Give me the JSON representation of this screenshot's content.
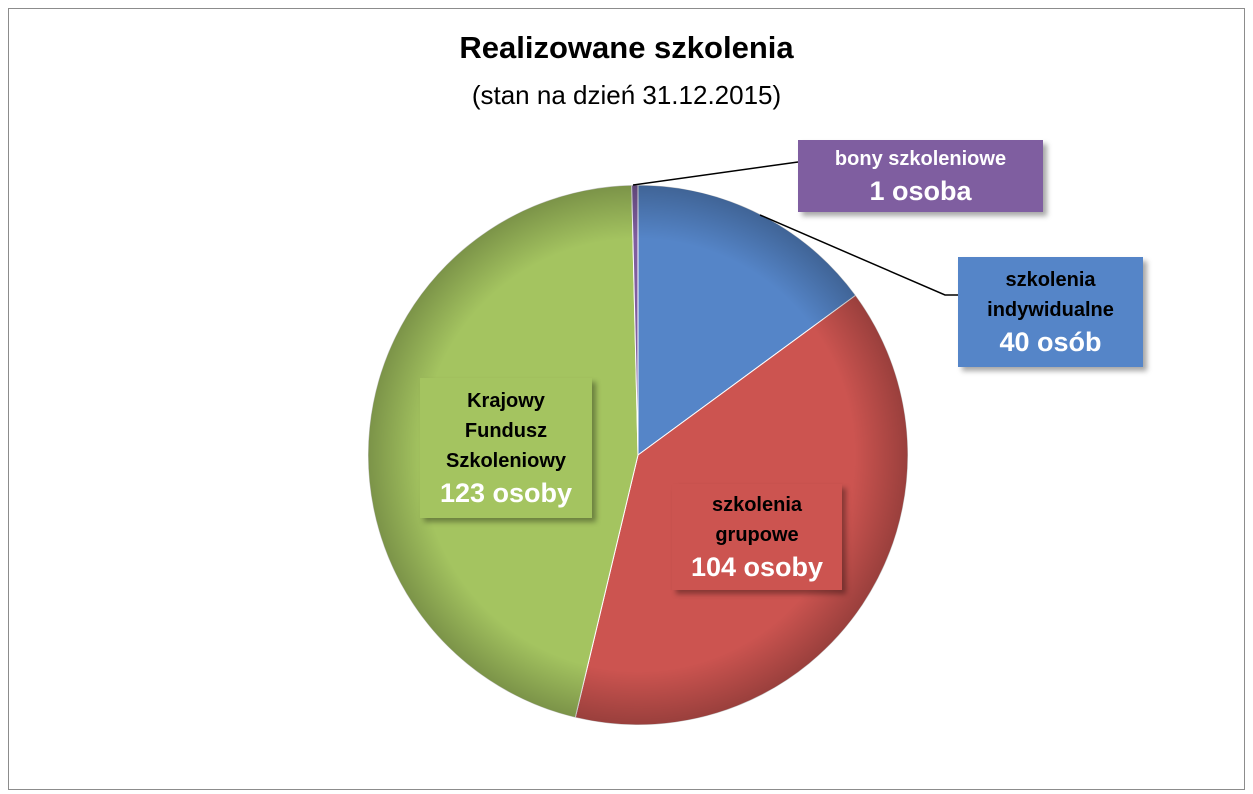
{
  "chart_data": {
    "type": "pie",
    "title": "Realizowane szkolenia",
    "subtitle": "(stan na dzień 31.12.2015)",
    "categories": [
      "szkolenia indywidualne",
      "szkolenia grupowe",
      "Krajowy Fundusz Szkoleniowy",
      "bony szkoleniowe"
    ],
    "values": [
      40,
      104,
      123,
      1
    ],
    "value_labels": [
      "40 osób",
      "104 osoby",
      "123 osoby",
      "1 osoba"
    ],
    "colors": [
      "#5585c8",
      "#cc5450",
      "#a4c460",
      "#7f5ea0"
    ]
  }
}
